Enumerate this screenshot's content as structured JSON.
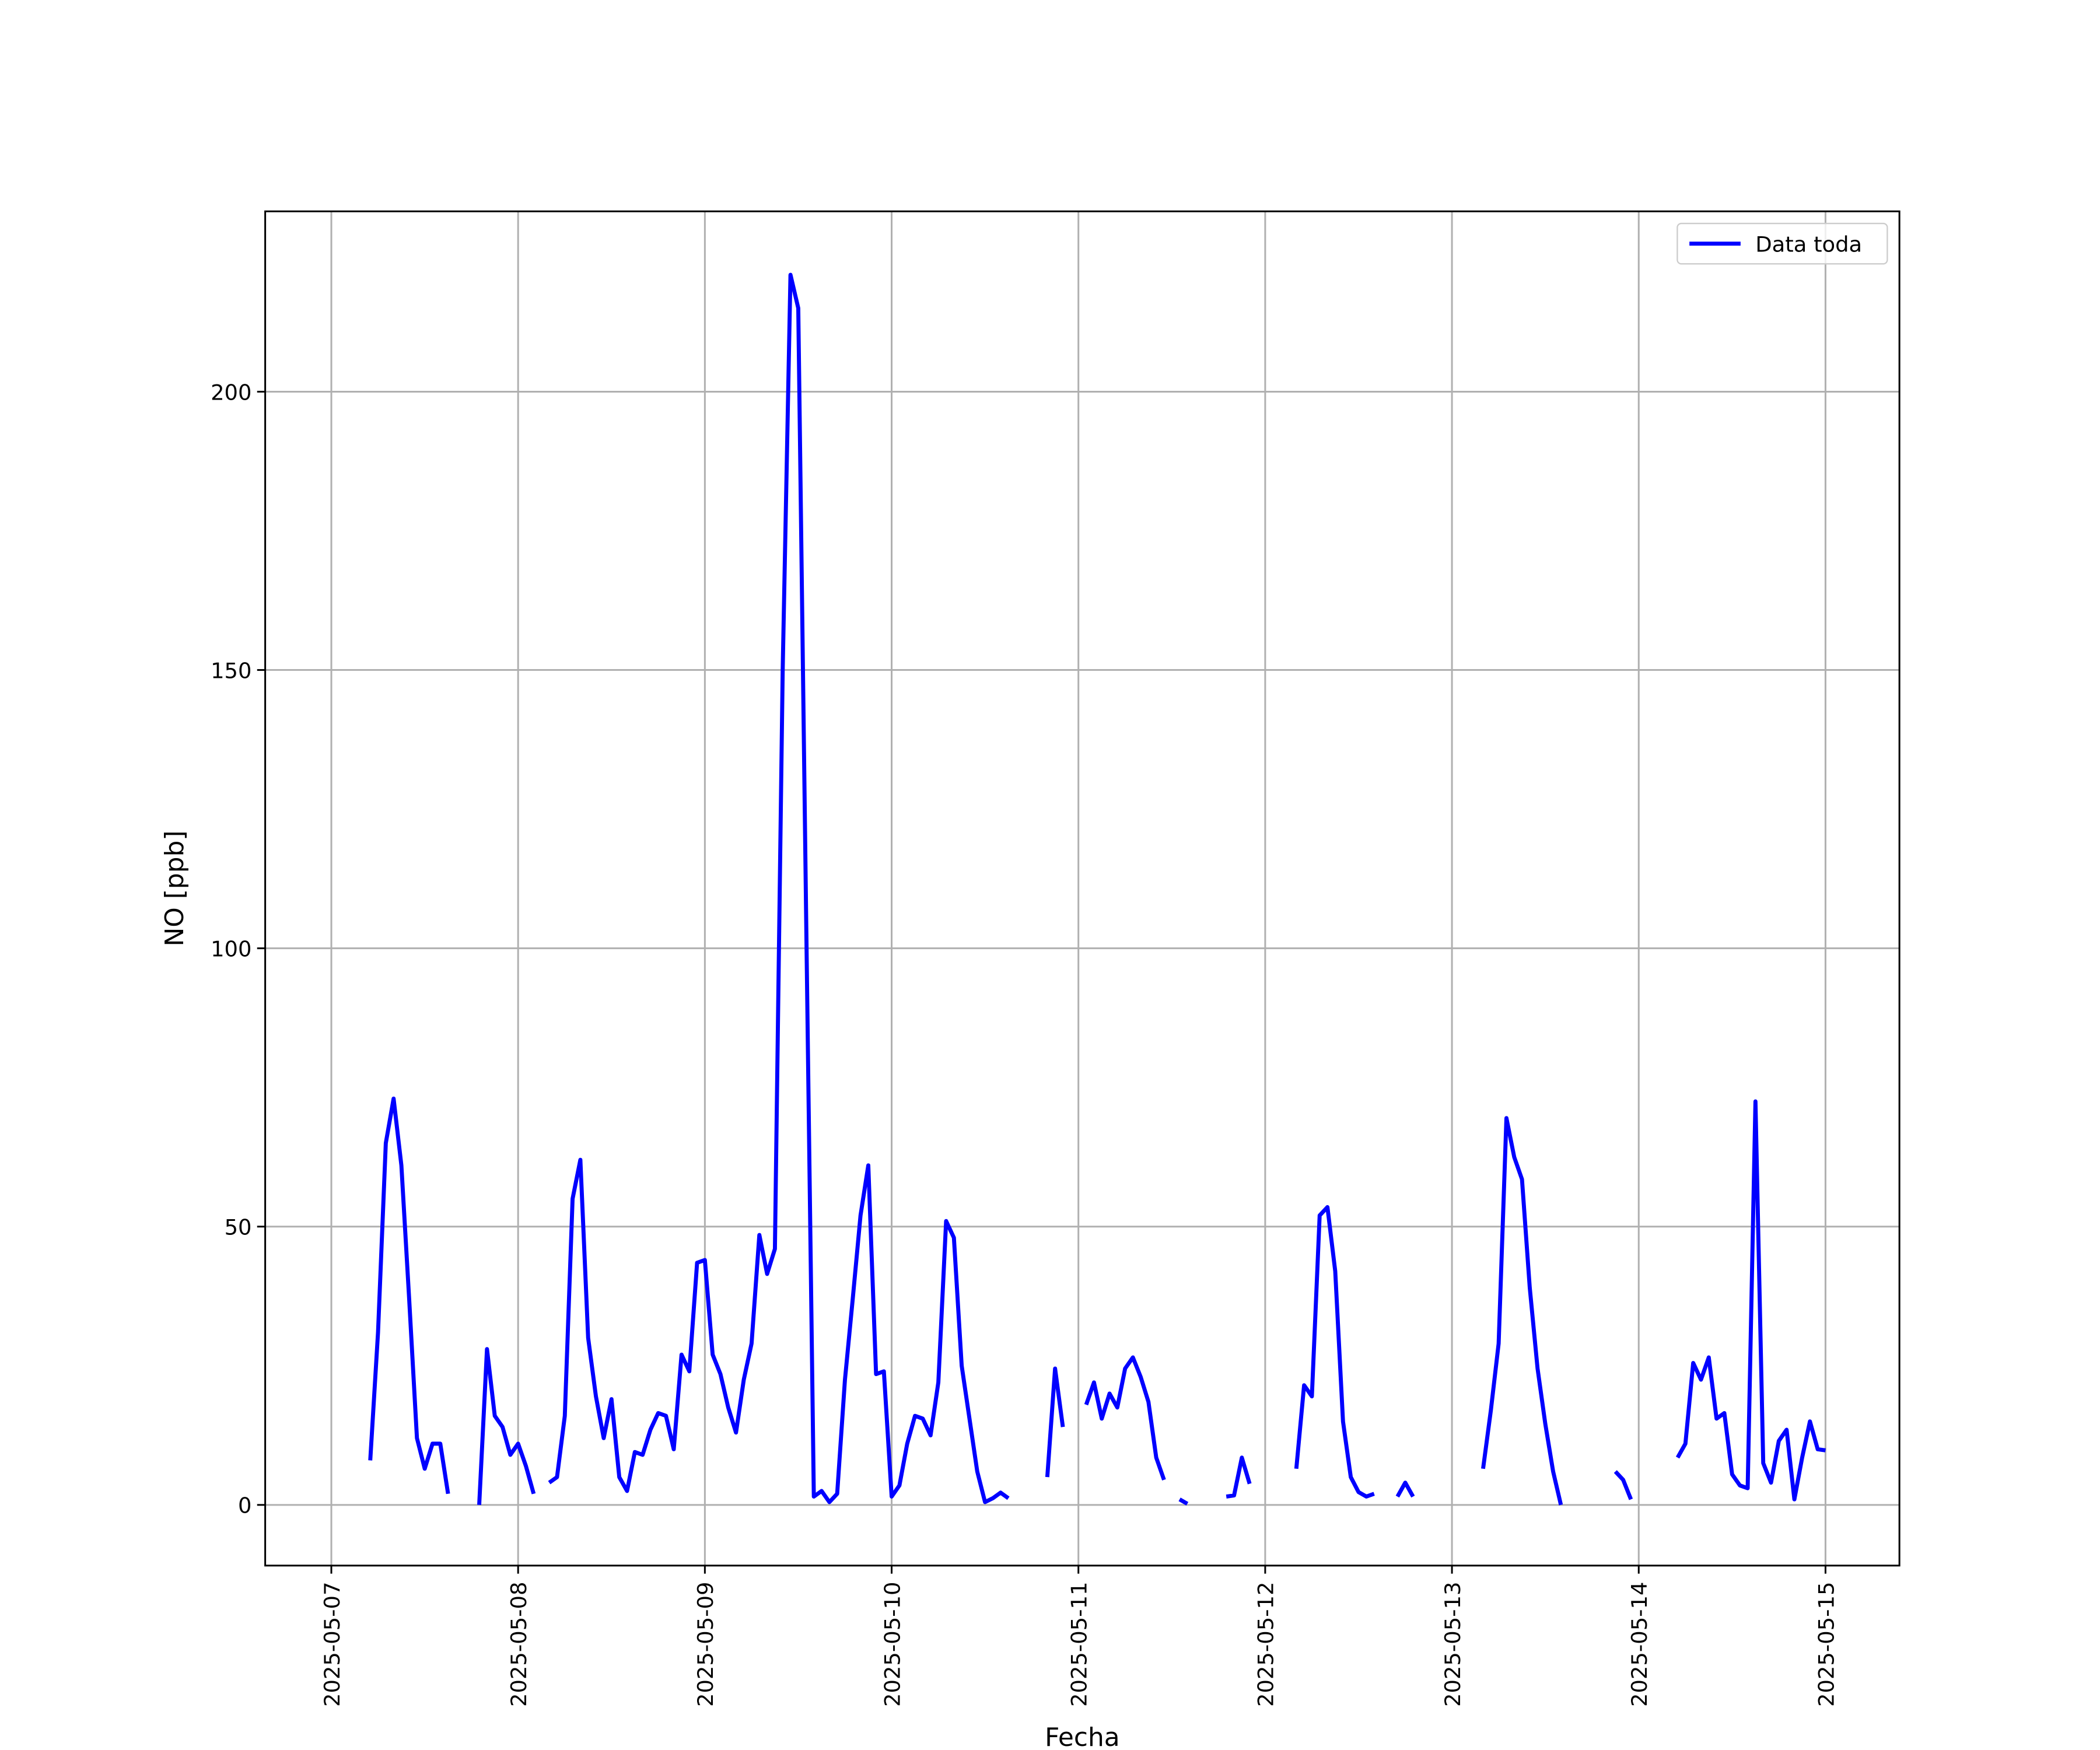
{
  "chart_data": {
    "type": "line",
    "xlabel": "Fecha",
    "ylabel": "NO [ppb]",
    "x": [
      "2025-05-07 05:00",
      "2025-05-07 06:00",
      "2025-05-07 07:00",
      "2025-05-07 08:00",
      "2025-05-07 09:00",
      "2025-05-07 10:00",
      "2025-05-07 11:00",
      "2025-05-07 12:00",
      "2025-05-07 13:00",
      "2025-05-07 14:00",
      "2025-05-07 15:00",
      "2025-05-07 16:00",
      "2025-05-07 17:00",
      "2025-05-07 18:00",
      "2025-05-07 19:00",
      "2025-05-07 20:00",
      "2025-05-07 21:00",
      "2025-05-07 22:00",
      "2025-05-07 23:00",
      "2025-05-08 00:00",
      "2025-05-08 01:00",
      "2025-05-08 02:00",
      "2025-05-08 03:00",
      "2025-05-08 04:00",
      "2025-05-08 05:00",
      "2025-05-08 06:00",
      "2025-05-08 07:00",
      "2025-05-08 08:00",
      "2025-05-08 09:00",
      "2025-05-08 10:00",
      "2025-05-08 11:00",
      "2025-05-08 12:00",
      "2025-05-08 13:00",
      "2025-05-08 14:00",
      "2025-05-08 15:00",
      "2025-05-08 16:00",
      "2025-05-08 17:00",
      "2025-05-08 18:00",
      "2025-05-08 19:00",
      "2025-05-08 20:00",
      "2025-05-08 21:00",
      "2025-05-08 22:00",
      "2025-05-08 23:00",
      "2025-05-09 00:00",
      "2025-05-09 01:00",
      "2025-05-09 02:00",
      "2025-05-09 03:00",
      "2025-05-09 04:00",
      "2025-05-09 05:00",
      "2025-05-09 06:00",
      "2025-05-09 07:00",
      "2025-05-09 08:00",
      "2025-05-09 09:00",
      "2025-05-09 10:00",
      "2025-05-09 11:00",
      "2025-05-09 12:00",
      "2025-05-09 13:00",
      "2025-05-09 14:00",
      "2025-05-09 15:00",
      "2025-05-09 16:00",
      "2025-05-09 17:00",
      "2025-05-09 18:00",
      "2025-05-09 19:00",
      "2025-05-09 20:00",
      "2025-05-09 21:00",
      "2025-05-09 22:00",
      "2025-05-09 23:00",
      "2025-05-10 00:00",
      "2025-05-10 01:00",
      "2025-05-10 02:00",
      "2025-05-10 03:00",
      "2025-05-10 04:00",
      "2025-05-10 05:00",
      "2025-05-10 06:00",
      "2025-05-10 07:00",
      "2025-05-10 08:00",
      "2025-05-10 09:00",
      "2025-05-10 10:00",
      "2025-05-10 11:00",
      "2025-05-10 12:00",
      "2025-05-10 13:00",
      "2025-05-10 14:00",
      "2025-05-10 15:00",
      "2025-05-10 16:00",
      "2025-05-10 17:00",
      "2025-05-10 18:00",
      "2025-05-10 19:00",
      "2025-05-10 20:00",
      "2025-05-10 21:00",
      "2025-05-10 22:00",
      "2025-05-10 23:00",
      "2025-05-11 00:00",
      "2025-05-11 01:00",
      "2025-05-11 02:00",
      "2025-05-11 03:00",
      "2025-05-11 04:00",
      "2025-05-11 05:00",
      "2025-05-11 06:00",
      "2025-05-11 07:00",
      "2025-05-11 08:00",
      "2025-05-11 09:00",
      "2025-05-11 10:00",
      "2025-05-11 11:00",
      "2025-05-11 12:00",
      "2025-05-11 13:00",
      "2025-05-11 14:00",
      "2025-05-11 15:00",
      "2025-05-11 16:00",
      "2025-05-11 17:00",
      "2025-05-11 18:00",
      "2025-05-11 19:00",
      "2025-05-11 20:00",
      "2025-05-11 21:00",
      "2025-05-11 22:00",
      "2025-05-11 23:00",
      "2025-05-12 00:00",
      "2025-05-12 01:00",
      "2025-05-12 02:00",
      "2025-05-12 03:00",
      "2025-05-12 04:00",
      "2025-05-12 05:00",
      "2025-05-12 06:00",
      "2025-05-12 07:00",
      "2025-05-12 08:00",
      "2025-05-12 09:00",
      "2025-05-12 10:00",
      "2025-05-12 11:00",
      "2025-05-12 12:00",
      "2025-05-12 13:00",
      "2025-05-12 14:00",
      "2025-05-12 15:00",
      "2025-05-12 16:00",
      "2025-05-12 17:00",
      "2025-05-12 18:00",
      "2025-05-12 19:00",
      "2025-05-12 20:00",
      "2025-05-12 21:00",
      "2025-05-12 22:00",
      "2025-05-12 23:00",
      "2025-05-13 00:00",
      "2025-05-13 01:00",
      "2025-05-13 02:00",
      "2025-05-13 03:00",
      "2025-05-13 04:00",
      "2025-05-13 05:00",
      "2025-05-13 06:00",
      "2025-05-13 07:00",
      "2025-05-13 08:00",
      "2025-05-13 09:00",
      "2025-05-13 10:00",
      "2025-05-13 11:00",
      "2025-05-13 12:00",
      "2025-05-13 13:00",
      "2025-05-13 14:00",
      "2025-05-13 15:00",
      "2025-05-13 16:00",
      "2025-05-13 17:00",
      "2025-05-13 18:00",
      "2025-05-13 19:00",
      "2025-05-13 20:00",
      "2025-05-13 21:00",
      "2025-05-13 22:00",
      "2025-05-13 23:00",
      "2025-05-14 00:00",
      "2025-05-14 01:00",
      "2025-05-14 02:00",
      "2025-05-14 03:00",
      "2025-05-14 04:00",
      "2025-05-14 05:00",
      "2025-05-14 06:00",
      "2025-05-14 07:00",
      "2025-05-14 08:00",
      "2025-05-14 09:00",
      "2025-05-14 10:00",
      "2025-05-14 11:00",
      "2025-05-14 12:00",
      "2025-05-14 13:00",
      "2025-05-14 14:00",
      "2025-05-14 15:00",
      "2025-05-14 16:00",
      "2025-05-14 17:00",
      "2025-05-14 18:00",
      "2025-05-14 19:00",
      "2025-05-14 20:00",
      "2025-05-14 21:00",
      "2025-05-14 22:00",
      "2025-05-14 23:00",
      "2025-05-15 00:00"
    ],
    "series": [
      {
        "name": "Data toda",
        "color": "#0000ff",
        "values": [
          8,
          31,
          65,
          73,
          61,
          37,
          12,
          6.5,
          11,
          11,
          2,
          null,
          null,
          null,
          0,
          28,
          16,
          14,
          9,
          11,
          7,
          2,
          null,
          4,
          5,
          16,
          55,
          62,
          30,
          19.5,
          12,
          19,
          5,
          2.5,
          9.5,
          9,
          13.5,
          16.5,
          16,
          10,
          27,
          24,
          43.5,
          44,
          27,
          23.5,
          17.5,
          13,
          22.5,
          29,
          48.5,
          41.5,
          46,
          150,
          221,
          215,
          107,
          1.5,
          2.5,
          0.5,
          2,
          22.5,
          37,
          52,
          61,
          23.5,
          24,
          1.5,
          3.5,
          11,
          16,
          15.5,
          12.5,
          22,
          51,
          48,
          25,
          15.5,
          6,
          0.5,
          1.2,
          2.2,
          1.2,
          null,
          null,
          null,
          null,
          5,
          24.5,
          14,
          null,
          null,
          18,
          22,
          15.5,
          20,
          17.5,
          24.5,
          26.5,
          23,
          18.5,
          8.5,
          4.5,
          null,
          1,
          0.2,
          null,
          null,
          null,
          null,
          1.5,
          1.7,
          8.5,
          3.8,
          null,
          null,
          null,
          null,
          null,
          6.5,
          21.5,
          19.5,
          52,
          53.5,
          42,
          15,
          5,
          2.3,
          1.5,
          2,
          null,
          null,
          1.5,
          4,
          1.5,
          null,
          null,
          null,
          null,
          null,
          null,
          null,
          null,
          6.5,
          17,
          29,
          69.5,
          62.5,
          58.5,
          39,
          24.5,
          14.5,
          6,
          0,
          null,
          null,
          null,
          null,
          null,
          null,
          6,
          4.5,
          1,
          null,
          null,
          null,
          null,
          null,
          8.5,
          11,
          25.5,
          22.5,
          26.5,
          15.5,
          16.5,
          5.5,
          3.5,
          3,
          72.5,
          7.5,
          4,
          11.5,
          13.5,
          1,
          8.5,
          15,
          10,
          9.8
        ]
      }
    ],
    "xlim": [
      "2025-05-06 15:30",
      "2025-05-15 09:30"
    ],
    "xticks": [
      "2025-05-07",
      "2025-05-08",
      "2025-05-09",
      "2025-05-10",
      "2025-05-11",
      "2025-05-12",
      "2025-05-13",
      "2025-05-14",
      "2025-05-15"
    ],
    "ylim": [
      -10.9,
      232.4
    ],
    "yticks": [
      0,
      50,
      100,
      150,
      200
    ],
    "grid": true,
    "legend": "upper right"
  }
}
